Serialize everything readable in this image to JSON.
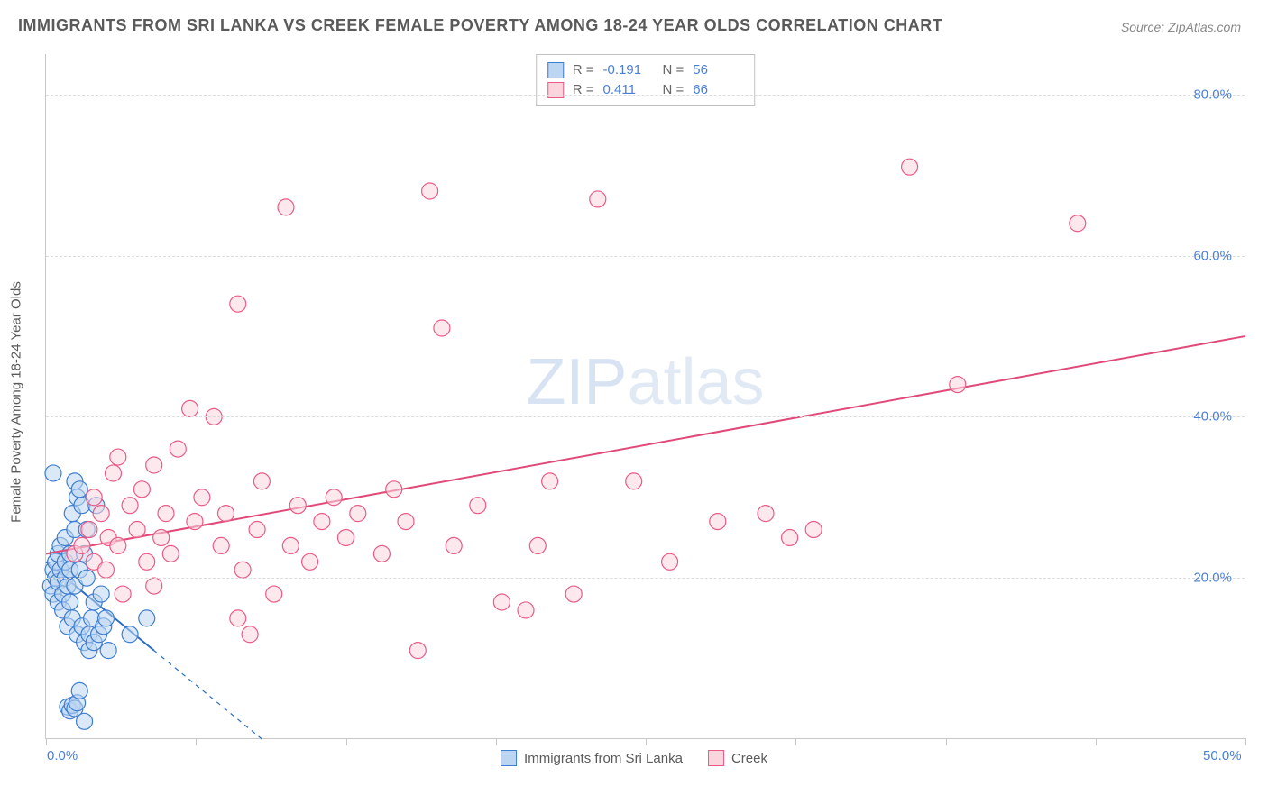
{
  "title": "IMMIGRANTS FROM SRI LANKA VS CREEK FEMALE POVERTY AMONG 18-24 YEAR OLDS CORRELATION CHART",
  "source": "Source: ZipAtlas.com",
  "ylabel": "Female Poverty Among 18-24 Year Olds",
  "watermark_a": "ZIP",
  "watermark_b": "atlas",
  "chart": {
    "type": "scatter",
    "xlim": [
      0,
      50
    ],
    "ylim": [
      0,
      85
    ],
    "x_ticks": [
      0,
      6.25,
      12.5,
      18.75,
      25,
      31.25,
      37.5,
      43.75,
      50
    ],
    "x_tick_labels": {
      "0": "0.0%",
      "50": "50.0%"
    },
    "y_gridlines": [
      20,
      40,
      60,
      80
    ],
    "y_tick_labels": {
      "20": "20.0%",
      "40": "40.0%",
      "60": "60.0%",
      "80": "80.0%"
    },
    "background_color": "#ffffff",
    "grid_color": "#dcdcdc",
    "marker_radius": 9,
    "marker_stroke_width": 1.2,
    "trend_line_width": 2
  },
  "series": [
    {
      "key": "sri_lanka",
      "label": "Immigrants from Sri Lanka",
      "r_value": "-0.191",
      "n_value": "56",
      "fill": "#bcd5f0",
      "stroke": "#3e7ed1",
      "line_color": "#2a6cc4",
      "points": [
        [
          0.2,
          19
        ],
        [
          0.3,
          18
        ],
        [
          0.3,
          21
        ],
        [
          0.4,
          20
        ],
        [
          0.4,
          22
        ],
        [
          0.5,
          17
        ],
        [
          0.5,
          23
        ],
        [
          0.5,
          19.5
        ],
        [
          0.6,
          21
        ],
        [
          0.6,
          24
        ],
        [
          0.7,
          18
        ],
        [
          0.7,
          16
        ],
        [
          0.8,
          22
        ],
        [
          0.8,
          25
        ],
        [
          0.8,
          20
        ],
        [
          0.9,
          19
        ],
        [
          0.9,
          14
        ],
        [
          1.0,
          21
        ],
        [
          1.0,
          23
        ],
        [
          1.0,
          17
        ],
        [
          1.1,
          28
        ],
        [
          1.1,
          15
        ],
        [
          1.2,
          26
        ],
        [
          1.2,
          32
        ],
        [
          1.2,
          19
        ],
        [
          1.3,
          30
        ],
        [
          1.3,
          13
        ],
        [
          1.4,
          21
        ],
        [
          1.4,
          31
        ],
        [
          1.5,
          29
        ],
        [
          1.5,
          14
        ],
        [
          1.6,
          12
        ],
        [
          1.6,
          23
        ],
        [
          1.7,
          20
        ],
        [
          1.7,
          26
        ],
        [
          1.8,
          13
        ],
        [
          1.8,
          11
        ],
        [
          1.9,
          15
        ],
        [
          2.0,
          17
        ],
        [
          2.0,
          12
        ],
        [
          2.1,
          29
        ],
        [
          2.2,
          13
        ],
        [
          2.3,
          18
        ],
        [
          2.4,
          14
        ],
        [
          2.5,
          15
        ],
        [
          2.6,
          11
        ],
        [
          0.9,
          4
        ],
        [
          1.0,
          3.5
        ],
        [
          1.1,
          4.2
        ],
        [
          1.2,
          3.8
        ],
        [
          1.3,
          4.5
        ],
        [
          1.4,
          6
        ],
        [
          1.6,
          2.2
        ],
        [
          3.5,
          13
        ],
        [
          4.2,
          15
        ],
        [
          0.3,
          33
        ]
      ],
      "trend": {
        "x1": 0,
        "y1": 22,
        "x2": 9,
        "y2": 0,
        "dashed_from": 4.5
      }
    },
    {
      "key": "creek",
      "label": "Creek",
      "r_value": "0.411",
      "n_value": "66",
      "fill": "#fbd5de",
      "stroke": "#e95b86",
      "line_color": "#e04a78",
      "points": [
        [
          1.2,
          23
        ],
        [
          1.5,
          24
        ],
        [
          1.8,
          26
        ],
        [
          2.0,
          22
        ],
        [
          2.0,
          30
        ],
        [
          2.3,
          28
        ],
        [
          2.5,
          21
        ],
        [
          2.6,
          25
        ],
        [
          2.8,
          33
        ],
        [
          3.0,
          35
        ],
        [
          3.0,
          24
        ],
        [
          3.2,
          18
        ],
        [
          3.5,
          29
        ],
        [
          3.8,
          26
        ],
        [
          4.0,
          31
        ],
        [
          4.2,
          22
        ],
        [
          4.5,
          34
        ],
        [
          4.5,
          19
        ],
        [
          4.8,
          25
        ],
        [
          5.0,
          28
        ],
        [
          5.2,
          23
        ],
        [
          5.5,
          36
        ],
        [
          6.0,
          41
        ],
        [
          6.2,
          27
        ],
        [
          6.5,
          30
        ],
        [
          7.0,
          40
        ],
        [
          7.3,
          24
        ],
        [
          7.5,
          28
        ],
        [
          8.0,
          54
        ],
        [
          8.2,
          21
        ],
        [
          8.5,
          13
        ],
        [
          8.8,
          26
        ],
        [
          9.0,
          32
        ],
        [
          9.5,
          18
        ],
        [
          10.0,
          66
        ],
        [
          10.2,
          24
        ],
        [
          10.5,
          29
        ],
        [
          11.0,
          22
        ],
        [
          11.5,
          27
        ],
        [
          12.0,
          30
        ],
        [
          12.5,
          25
        ],
        [
          13.0,
          28
        ],
        [
          14.0,
          23
        ],
        [
          14.5,
          31
        ],
        [
          15.0,
          27
        ],
        [
          15.5,
          11
        ],
        [
          16.0,
          68
        ],
        [
          16.5,
          51
        ],
        [
          17.0,
          24
        ],
        [
          18.0,
          29
        ],
        [
          19.0,
          17
        ],
        [
          20.0,
          16
        ],
        [
          20.5,
          24
        ],
        [
          21.0,
          32
        ],
        [
          22.0,
          18
        ],
        [
          23.0,
          67
        ],
        [
          24.5,
          32
        ],
        [
          26.0,
          22
        ],
        [
          28.0,
          27
        ],
        [
          30.0,
          28
        ],
        [
          31.0,
          25
        ],
        [
          32.0,
          26
        ],
        [
          36.0,
          71
        ],
        [
          38.0,
          44
        ],
        [
          43.0,
          64
        ],
        [
          8.0,
          15
        ]
      ],
      "trend": {
        "x1": 0,
        "y1": 23,
        "x2": 50,
        "y2": 50
      }
    }
  ],
  "r_box": {
    "r_label": "R =",
    "n_label": "N ="
  },
  "axis_label_color": "#4a7fd6",
  "title_color": "#5a5a5a"
}
